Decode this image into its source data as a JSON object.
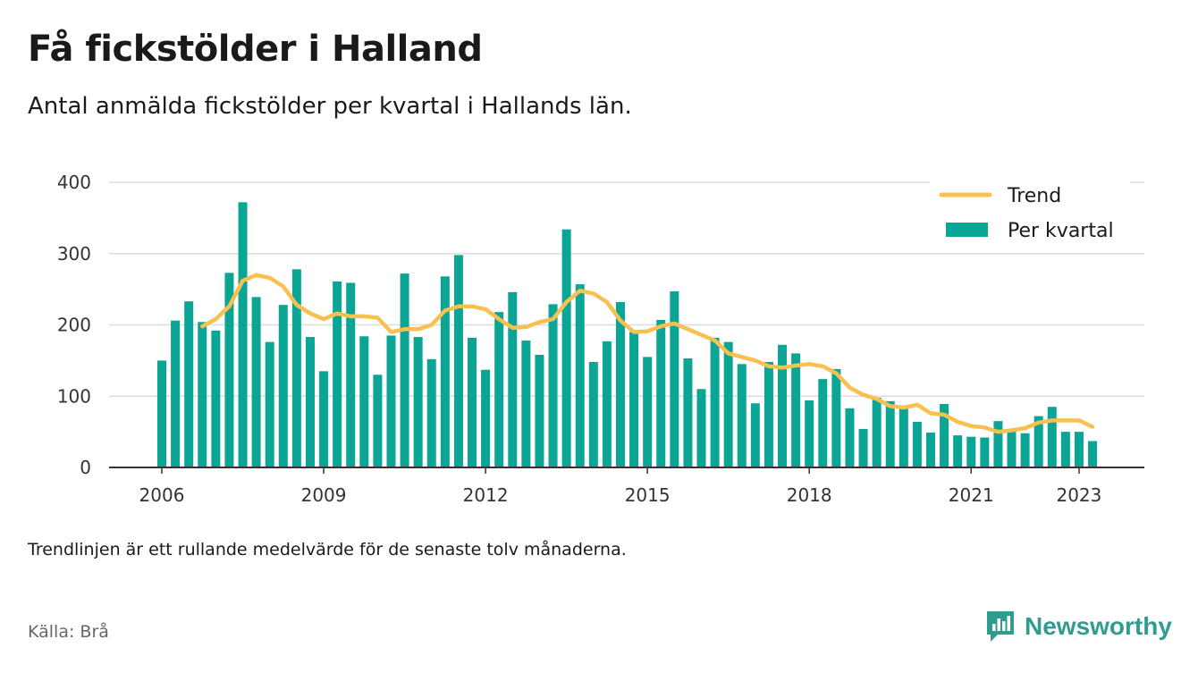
{
  "title": "Få fickstölder i Halland",
  "subtitle": "Antal anmälda fickstölder per kvartal i Hallands län.",
  "note": "Trendlinjen är ett rullande medelvärde för de senaste tolv månaderna.",
  "source": "Källa: Brå",
  "brand": {
    "name": "Newsworthy",
    "icon": "newsworthy-logo-icon",
    "color": "#2f9c8f"
  },
  "colors": {
    "bar": "#0ba596",
    "trend": "#f7c04f",
    "grid": "#dddddd",
    "axis": "#333333"
  },
  "chart_data": {
    "type": "bar",
    "x_start": 2006.0,
    "x_step": 0.25,
    "ylim": [
      0,
      400
    ],
    "yticks": [
      0,
      100,
      200,
      300,
      400
    ],
    "xticks": [
      2006,
      2009,
      2012,
      2015,
      2018,
      2021,
      2023
    ],
    "grid": true,
    "legend_position": "top-right",
    "series": [
      {
        "name": "Per kvartal",
        "type": "bar",
        "values": [
          150,
          206,
          233,
          204,
          192,
          273,
          372,
          239,
          176,
          228,
          278,
          183,
          135,
          261,
          259,
          184,
          130,
          185,
          272,
          183,
          152,
          268,
          298,
          182,
          137,
          218,
          246,
          178,
          158,
          229,
          334,
          257,
          148,
          177,
          232,
          190,
          155,
          207,
          247,
          153,
          110,
          182,
          176,
          145,
          90,
          148,
          172,
          160,
          94,
          124,
          138,
          83,
          54,
          98,
          93,
          84,
          64,
          49,
          89,
          45,
          43,
          42,
          65,
          52,
          48,
          72,
          85,
          50,
          50,
          37
        ]
      },
      {
        "name": "Trend",
        "type": "line",
        "x_offset": 0.75,
        "values": [
          198,
          208,
          226,
          262,
          270,
          266,
          254,
          228,
          216,
          208,
          216,
          212,
          212,
          210,
          190,
          194,
          194,
          200,
          220,
          226,
          226,
          222,
          208,
          196,
          197,
          204,
          208,
          232,
          248,
          244,
          232,
          206,
          190,
          191,
          198,
          202,
          194,
          186,
          178,
          160,
          155,
          150,
          142,
          140,
          143,
          145,
          142,
          132,
          112,
          102,
          96,
          86,
          84,
          88,
          76,
          74,
          64,
          58,
          56,
          50,
          52,
          55,
          63,
          66,
          66,
          66,
          57
        ]
      }
    ]
  }
}
